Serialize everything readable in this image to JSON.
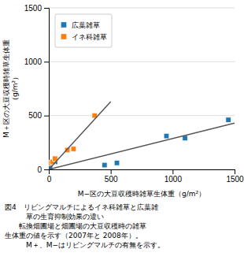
{
  "chart_data": {
    "type": "scatter",
    "x_label": "M−区の大豆収穫時雑草生体重（g/m²）",
    "y_label": "M＋区の大豆収穫時雑草生体重\n（g/m²）",
    "xlim": [
      0,
      1500
    ],
    "ylim": [
      0,
      1500
    ],
    "xticks": [
      0,
      500,
      1000,
      1500
    ],
    "yticks": [
      0,
      500,
      1000,
      1500
    ],
    "grid": true,
    "legend": "upper left",
    "marker": "square",
    "series": [
      {
        "name": "広葉雑草",
        "type": "scatter",
        "x": [
          10,
          50,
          450,
          550,
          950,
          1100,
          1450
        ],
        "values": [
          20,
          70,
          40,
          60,
          310,
          290,
          460
        ]
      },
      {
        "name": "イネ科雑草",
        "type": "scatter",
        "x": [
          10,
          30,
          50,
          150,
          200,
          370
        ],
        "values": [
          60,
          70,
          100,
          180,
          190,
          500
        ]
      },
      {
        "type": "line",
        "x": [
          0,
          1500
        ],
        "values": [
          0,
          430
        ]
      },
      {
        "type": "line",
        "x": [
          0,
          500
        ],
        "values": [
          0,
          630
        ]
      }
    ],
    "annotations": [
      "図4　リビングマルチによるイネ科雑草と広葉雑",
      "　　　草の生育抑制効果の違い",
      "　　転換畑圃場と畑圃場の大豆収穫時の雑草",
      "生体重の値を示す（2007年と 2008年）。",
      "　　　M＋、M−はリビングマルチの有無を示す。"
    ]
  }
}
